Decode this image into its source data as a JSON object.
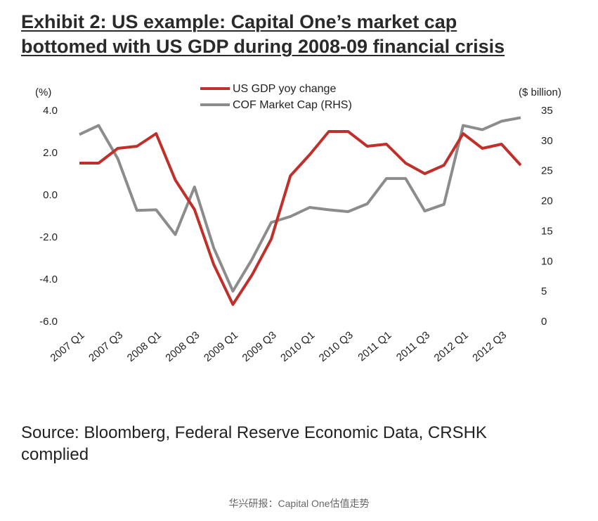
{
  "title": {
    "line1": "Exhibit 2: US example: Capital One’s market cap",
    "line2": "bottomed with US GDP during 2008-09 financial crisis"
  },
  "source": {
    "line1": "Source: Bloomberg, Federal Reserve Economic Data, CRSHK",
    "line2": "complied"
  },
  "caption": "华兴研报：Capital One估值走势",
  "chart_data": {
    "type": "line",
    "left_axis_unit": "(%)",
    "right_axis_unit": "($ billion)",
    "ylim_left": [
      -6.0,
      4.0
    ],
    "ylim_right": [
      0,
      35
    ],
    "yticks_left": [
      "4.0",
      "2.0",
      "0.0",
      "-2.0",
      "-4.0",
      "-6.0"
    ],
    "yticks_right": [
      "35",
      "30",
      "25",
      "20",
      "15",
      "10",
      "5",
      "0"
    ],
    "categories": [
      "2007 Q1",
      "2007 Q2",
      "2007 Q3",
      "2007 Q4",
      "2008 Q1",
      "2008 Q2",
      "2008 Q3",
      "2008 Q4",
      "2009 Q1",
      "2009 Q2",
      "2009 Q3",
      "2009 Q4",
      "2010 Q1",
      "2010 Q2",
      "2010 Q3",
      "2010 Q4",
      "2011 Q1",
      "2011 Q2",
      "2011 Q3",
      "2011 Q4",
      "2012 Q1",
      "2012 Q2",
      "2012 Q3",
      "2012 Q4"
    ],
    "xtick_labels": [
      "2007 Q1",
      "2007 Q3",
      "2008 Q1",
      "2008 Q3",
      "2009 Q1",
      "2009 Q3",
      "2010 Q1",
      "2010 Q3",
      "2011 Q1",
      "2011 Q3",
      "2012 Q1",
      "2012 Q3"
    ],
    "series": [
      {
        "name": "US GDP yoy change",
        "axis": "left",
        "color": "#c0302b",
        "values": [
          1.5,
          1.5,
          2.2,
          2.3,
          2.9,
          0.7,
          -0.7,
          -3.3,
          -5.2,
          -3.8,
          -2.1,
          0.9,
          1.9,
          3.0,
          3.0,
          2.3,
          2.4,
          1.5,
          1.0,
          1.4,
          2.9,
          2.2,
          2.4,
          1.4
        ]
      },
      {
        "name": "COF Market Cap (RHS)",
        "axis": "right",
        "color": "#8c8c8c",
        "values": [
          31,
          32.5,
          27,
          18.4,
          18.5,
          14.4,
          22.3,
          12.2,
          5,
          10.3,
          16.4,
          17.4,
          18.9,
          18.5,
          18.2,
          19.5,
          23.7,
          23.7,
          18.3,
          19.4,
          32.5,
          31.8,
          33.2,
          33.8
        ]
      }
    ]
  }
}
